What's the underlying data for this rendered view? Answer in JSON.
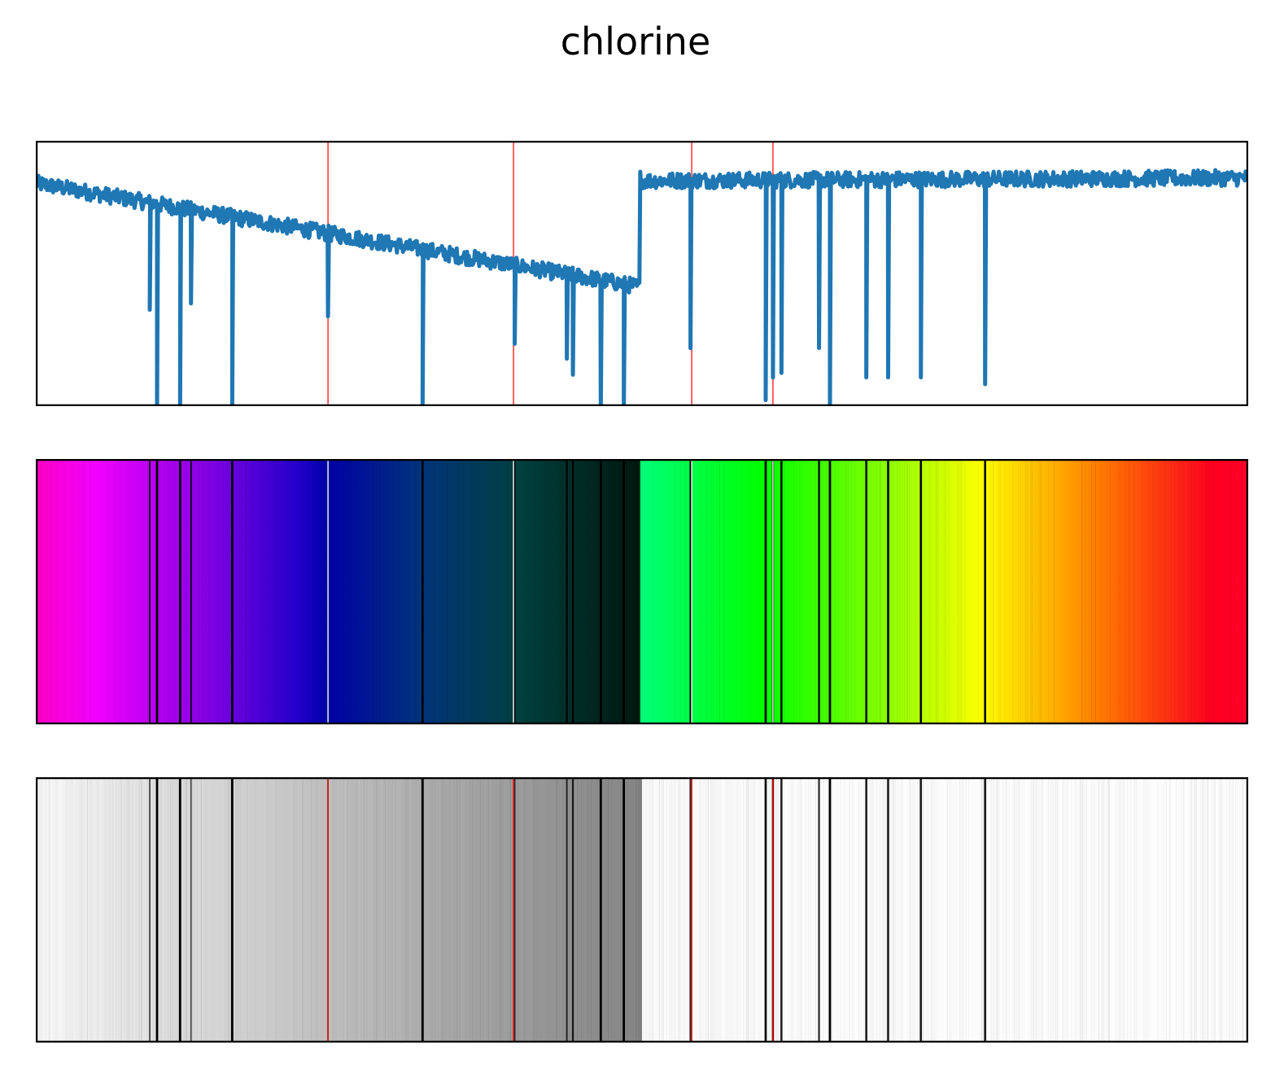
{
  "title": "chlorine",
  "colors": {
    "trace": "#1f77b4",
    "marker": "#ff0000",
    "frame": "#000000"
  },
  "chart_data": {
    "type": "line",
    "title": "chlorine",
    "xlabel": "",
    "ylabel": "",
    "xlim": [
      0,
      1000
    ],
    "ylim": [
      0,
      1
    ],
    "axes_visible": false,
    "grid": false,
    "trace_segments": [
      {
        "x": [
          0,
          498
        ],
        "y": [
          0.84,
          0.45
        ]
      },
      {
        "x": [
          499,
          1000
        ],
        "y": [
          0.85,
          0.86
        ]
      }
    ],
    "noise_amplitude": 0.03,
    "absorption_lines": [
      {
        "x": 94,
        "depth": 0.5
      },
      {
        "x": 100,
        "depth": 1.0
      },
      {
        "x": 119,
        "depth": 1.0
      },
      {
        "x": 128,
        "depth": 0.45
      },
      {
        "x": 162,
        "depth": 1.0
      },
      {
        "x": 241,
        "depth": 0.45
      },
      {
        "x": 319,
        "depth": 1.0
      },
      {
        "x": 395,
        "depth": 0.52
      },
      {
        "x": 438,
        "depth": 0.6
      },
      {
        "x": 443,
        "depth": 0.72
      },
      {
        "x": 466,
        "depth": 1.0
      },
      {
        "x": 485,
        "depth": 1.0
      },
      {
        "x": 540,
        "depth": 0.72
      },
      {
        "x": 602,
        "depth": 0.95
      },
      {
        "x": 608,
        "depth": 0.85
      },
      {
        "x": 615,
        "depth": 0.83
      },
      {
        "x": 646,
        "depth": 0.72
      },
      {
        "x": 655,
        "depth": 1.0
      },
      {
        "x": 685,
        "depth": 0.85
      },
      {
        "x": 703,
        "depth": 0.85
      },
      {
        "x": 730,
        "depth": 0.85
      },
      {
        "x": 783,
        "depth": 0.88
      }
    ],
    "marker_lines": [
      241,
      394,
      541,
      608
    ],
    "colormap": [
      {
        "at": 0.0,
        "color": "#ff00c8"
      },
      {
        "at": 0.05,
        "color": "#f200ff"
      },
      {
        "at": 0.12,
        "color": "#a000ee"
      },
      {
        "at": 0.22,
        "color": "#1e00c8"
      },
      {
        "at": 0.24,
        "color": "#0000a8"
      },
      {
        "at": 0.32,
        "color": "#00357a"
      },
      {
        "at": 0.4,
        "color": "#00403e"
      },
      {
        "at": 0.45,
        "color": "#002a24"
      },
      {
        "at": 0.498,
        "color": "#00180e"
      },
      {
        "at": 0.499,
        "color": "#00ff78"
      },
      {
        "at": 0.6,
        "color": "#00ff00"
      },
      {
        "at": 0.7,
        "color": "#88ff00"
      },
      {
        "at": 0.78,
        "color": "#ffff00"
      },
      {
        "at": 0.88,
        "color": "#ff7800"
      },
      {
        "at": 0.97,
        "color": "#ff0020"
      },
      {
        "at": 1.0,
        "color": "#ff0028"
      }
    ]
  }
}
